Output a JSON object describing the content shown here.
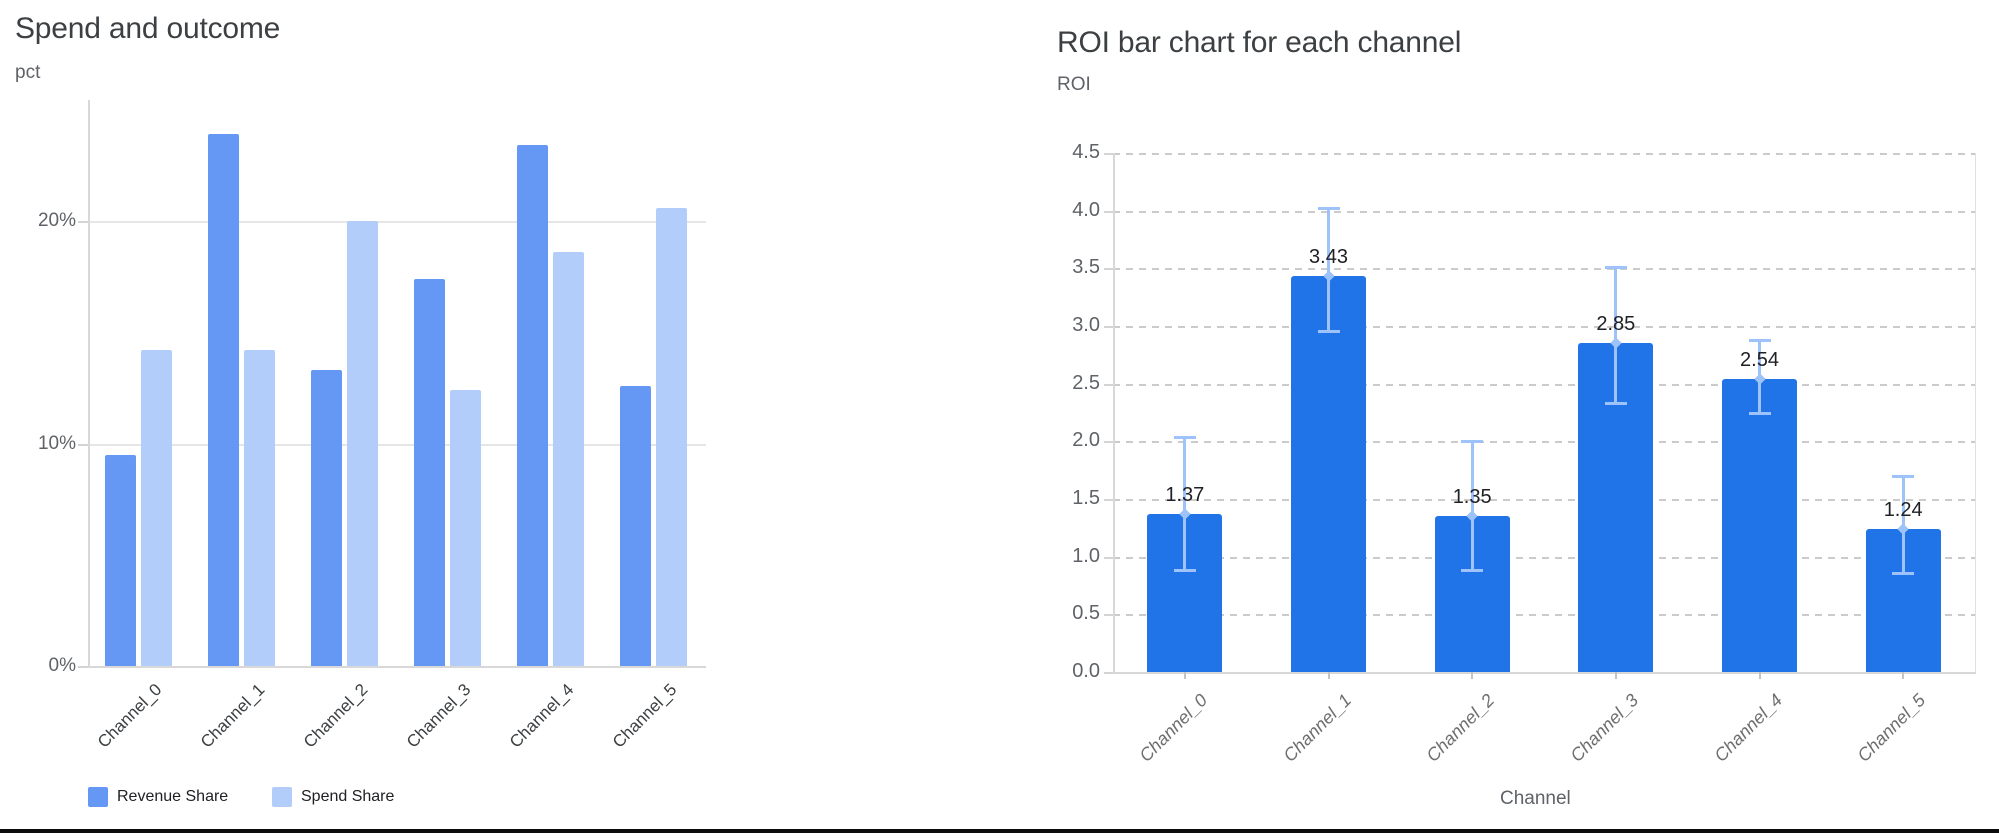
{
  "chart_data": [
    {
      "id": "spend-and-outcome",
      "type": "bar",
      "title": "Spend and outcome",
      "ylabel": "pct",
      "xlabel": "",
      "categories": [
        "Channel_0",
        "Channel_1",
        "Channel_2",
        "Channel_3",
        "Channel_4",
        "Channel_5"
      ],
      "series": [
        {
          "name": "Revenue Share",
          "color": "#6598f5",
          "values": [
            9.5,
            23.9,
            13.3,
            17.4,
            23.4,
            12.6
          ]
        },
        {
          "name": "Spend Share",
          "color": "#b3cdfa",
          "values": [
            14.2,
            14.2,
            20.0,
            12.4,
            18.6,
            20.6
          ]
        }
      ],
      "yticks": [
        {
          "label": "0%",
          "value": 0
        },
        {
          "label": "10%",
          "value": 10
        },
        {
          "label": "20%",
          "value": 20
        }
      ],
      "ylim": [
        0,
        25.5
      ],
      "grid": "horizontal-solid",
      "legend_position": "bottom"
    },
    {
      "id": "roi-by-channel",
      "type": "bar",
      "title": "ROI bar chart for each channel",
      "ylabel": "ROI",
      "xlabel": "Channel",
      "categories": [
        "Channel_0",
        "Channel_1",
        "Channel_2",
        "Channel_3",
        "Channel_4",
        "Channel_5"
      ],
      "values": [
        1.37,
        3.43,
        1.35,
        2.85,
        2.54,
        1.24
      ],
      "bar_labels": [
        "1.37",
        "3.43",
        "1.35",
        "2.85",
        "2.54",
        "1.24"
      ],
      "error_low": [
        0.88,
        2.95,
        0.88,
        2.32,
        2.24,
        0.85
      ],
      "error_high": [
        2.04,
        4.02,
        2.0,
        3.51,
        2.88,
        1.7
      ],
      "bar_color": "#2173e8",
      "error_color": "#9ec3fa",
      "yticks": [
        {
          "label": "0.0",
          "value": 0.0
        },
        {
          "label": "0.5",
          "value": 0.5
        },
        {
          "label": "1.0",
          "value": 1.0
        },
        {
          "label": "1.5",
          "value": 1.5
        },
        {
          "label": "2.0",
          "value": 2.0
        },
        {
          "label": "2.5",
          "value": 2.5
        },
        {
          "label": "3.0",
          "value": 3.0
        },
        {
          "label": "3.5",
          "value": 3.5
        },
        {
          "label": "4.0",
          "value": 4.0
        },
        {
          "label": "4.5",
          "value": 4.5
        }
      ],
      "ylim": [
        0,
        4.5
      ],
      "grid": "horizontal-dashed",
      "legend_position": "none"
    }
  ],
  "colors": {
    "title_text": "#3c4043",
    "tick_text": "#5f6368",
    "grid_solid": "#e6e6e6",
    "grid_dashed": "#cbcbcb",
    "axis_line": "#d8d8d8",
    "value_label_text": "#202124",
    "bottom_rule": "#0c0c0c"
  }
}
